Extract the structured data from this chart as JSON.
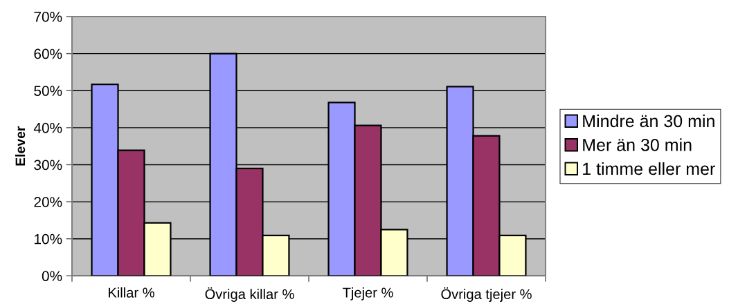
{
  "chart_data": {
    "type": "bar",
    "ylabel": "Elever",
    "categories": [
      "Killar %",
      "Övriga killar %",
      "Tjejer %",
      "Övriga tjejer %"
    ],
    "series": [
      {
        "name": "Mindre än 30 min",
        "color": "#9999ff",
        "values": [
          51.7,
          60.0,
          46.8,
          51.1
        ]
      },
      {
        "name": "Mer än 30 min",
        "color": "#993366",
        "values": [
          33.9,
          29.0,
          40.6,
          37.8
        ]
      },
      {
        "name": "1 timme eller mer",
        "color": "#ffffcc",
        "values": [
          14.3,
          10.9,
          12.5,
          10.9
        ]
      }
    ],
    "ylim": [
      0,
      70
    ],
    "yticks": [
      {
        "value": 0,
        "label": "0%"
      },
      {
        "value": 10,
        "label": "10%"
      },
      {
        "value": 20,
        "label": "20%"
      },
      {
        "value": 30,
        "label": "30%"
      },
      {
        "value": 40,
        "label": "40%"
      },
      {
        "value": 50,
        "label": "50%"
      },
      {
        "value": 60,
        "label": "60%"
      },
      {
        "value": 70,
        "label": "70%"
      }
    ],
    "grid": "y",
    "legend": "right"
  }
}
